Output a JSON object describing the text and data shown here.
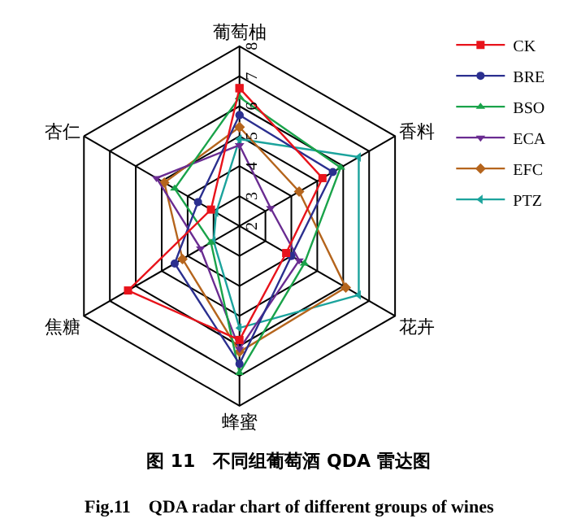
{
  "chart_data": {
    "type": "radar",
    "categories": [
      "葡萄柚",
      "香料",
      "花卉",
      "蜂蜜",
      "焦糖",
      "杏仁"
    ],
    "series": [
      {
        "name": "CK",
        "color": "#e8131b",
        "marker": "square",
        "values": [
          6.6,
          5.2,
          3.8,
          5.8,
          6.3,
          3.1
        ]
      },
      {
        "name": "BRE",
        "color": "#2b2f8f",
        "marker": "circle",
        "values": [
          5.7,
          5.6,
          4.0,
          6.6,
          4.5,
          3.6
        ]
      },
      {
        "name": "BSO",
        "color": "#1aa34a",
        "marker": "triangle",
        "values": [
          6.3,
          5.9,
          4.5,
          6.9,
          3.1,
          4.5
        ]
      },
      {
        "name": "ECA",
        "color": "#6a2c91",
        "marker": "triangle-down",
        "values": [
          4.7,
          3.2,
          4.3,
          6.1,
          3.5,
          5.2
        ]
      },
      {
        "name": "EFC",
        "color": "#b5651d",
        "marker": "diamond",
        "values": [
          5.3,
          4.3,
          6.1,
          6.2,
          4.2,
          4.9
        ]
      },
      {
        "name": "PTZ",
        "color": "#1ba39c",
        "marker": "triangle-left",
        "values": [
          4.9,
          6.6,
          6.6,
          5.4,
          3.0,
          2.9
        ]
      }
    ],
    "ylim": [
      2,
      8
    ],
    "yticks": [
      2,
      3,
      4,
      5,
      6,
      7,
      8
    ],
    "legend": "top right",
    "grid": true,
    "annotations": [
      "图 11　不同组葡萄酒 QDA 雷达图",
      "Fig.11　QDA radar chart of different groups of wines"
    ]
  }
}
